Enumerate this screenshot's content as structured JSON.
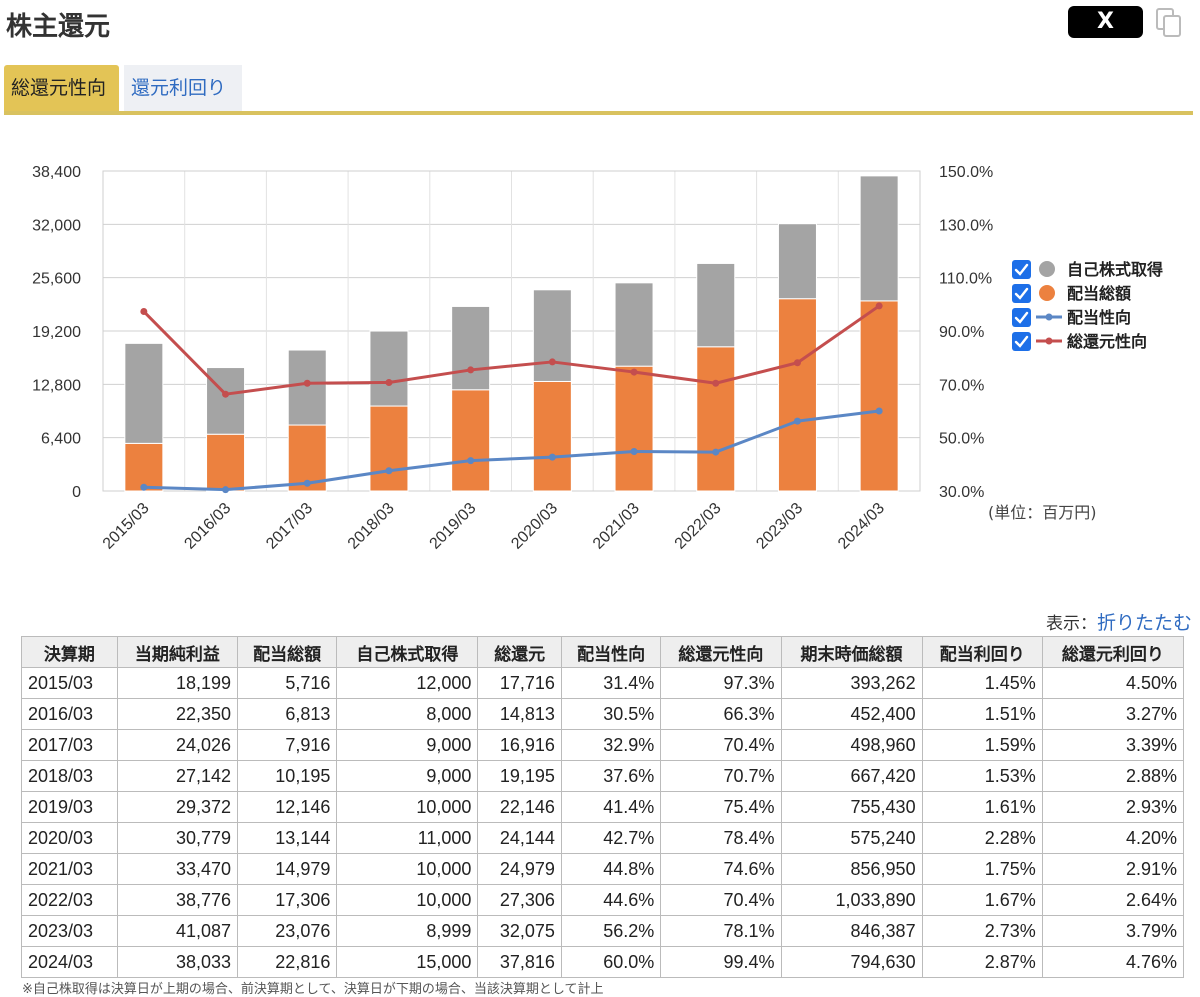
{
  "header": {
    "title": "株主還元",
    "x_label": "X"
  },
  "tabs": [
    {
      "label": "総還元性向"
    },
    {
      "label": "還元利回り"
    }
  ],
  "chart_data": {
    "type": "bar",
    "categories": [
      "2015/03",
      "2016/03",
      "2017/03",
      "2018/03",
      "2019/03",
      "2020/03",
      "2021/03",
      "2022/03",
      "2023/03",
      "2024/03"
    ],
    "series": [
      {
        "name": "自己株式取得",
        "kind": "bar-stack",
        "axis": "left",
        "color": "#a4a4a4",
        "values": [
          12000,
          8000,
          9000,
          9000,
          10000,
          11000,
          10000,
          10000,
          8999,
          15000
        ]
      },
      {
        "name": "配当総額",
        "kind": "bar-stack",
        "axis": "left",
        "color": "#ec813f",
        "values": [
          5716,
          6813,
          7916,
          10195,
          12146,
          13144,
          14979,
          17306,
          23076,
          22816
        ]
      },
      {
        "name": "配当性向",
        "kind": "line",
        "axis": "right",
        "color": "#5b87c5",
        "values": [
          31.4,
          30.5,
          32.9,
          37.6,
          41.4,
          42.7,
          44.8,
          44.6,
          56.2,
          60.0
        ]
      },
      {
        "name": "総還元性向",
        "kind": "line",
        "axis": "right",
        "color": "#c44e4e",
        "values": [
          97.3,
          66.3,
          70.4,
          70.7,
          75.4,
          78.4,
          74.6,
          70.4,
          78.1,
          99.4
        ]
      }
    ],
    "left_ticks": [
      "0",
      "6,400",
      "12,800",
      "19,200",
      "25,600",
      "32,000",
      "38,400"
    ],
    "right_ticks": [
      "30.0%",
      "50.0%",
      "70.0%",
      "90.0%",
      "110.0%",
      "130.0%",
      "150.0%"
    ],
    "ylim_left": [
      0,
      38400
    ],
    "ylim_right": [
      30,
      150
    ],
    "unit_label": "(単位：百万円)",
    "legend_position": "right",
    "grid": true
  },
  "table_controls": {
    "display_label": "表示：",
    "collapse_label": "折りたたむ"
  },
  "table": {
    "headers": [
      "決算期",
      "当期純利益",
      "配当総額",
      "自己株式取得",
      "総還元",
      "配当性向",
      "総還元性向",
      "期末時価総額",
      "配当利回り",
      "総還元利回り"
    ],
    "rows": [
      [
        "2015/03",
        "18,199",
        "5,716",
        "12,000",
        "17,716",
        "31.4%",
        "97.3%",
        "393,262",
        "1.45%",
        "4.50%"
      ],
      [
        "2016/03",
        "22,350",
        "6,813",
        "8,000",
        "14,813",
        "30.5%",
        "66.3%",
        "452,400",
        "1.51%",
        "3.27%"
      ],
      [
        "2017/03",
        "24,026",
        "7,916",
        "9,000",
        "16,916",
        "32.9%",
        "70.4%",
        "498,960",
        "1.59%",
        "3.39%"
      ],
      [
        "2018/03",
        "27,142",
        "10,195",
        "9,000",
        "19,195",
        "37.6%",
        "70.7%",
        "667,420",
        "1.53%",
        "2.88%"
      ],
      [
        "2019/03",
        "29,372",
        "12,146",
        "10,000",
        "22,146",
        "41.4%",
        "75.4%",
        "755,430",
        "1.61%",
        "2.93%"
      ],
      [
        "2020/03",
        "30,779",
        "13,144",
        "11,000",
        "24,144",
        "42.7%",
        "78.4%",
        "575,240",
        "2.28%",
        "4.20%"
      ],
      [
        "2021/03",
        "33,470",
        "14,979",
        "10,000",
        "24,979",
        "44.8%",
        "74.6%",
        "856,950",
        "1.75%",
        "2.91%"
      ],
      [
        "2022/03",
        "38,776",
        "17,306",
        "10,000",
        "27,306",
        "44.6%",
        "70.4%",
        "1,033,890",
        "1.67%",
        "2.64%"
      ],
      [
        "2023/03",
        "41,087",
        "23,076",
        "8,999",
        "32,075",
        "56.2%",
        "78.1%",
        "846,387",
        "2.73%",
        "3.79%"
      ],
      [
        "2024/03",
        "38,033",
        "22,816",
        "15,000",
        "37,816",
        "60.0%",
        "99.4%",
        "794,630",
        "2.87%",
        "4.76%"
      ]
    ]
  },
  "footnote": "※自己株取得は決算日が上期の場合、前決算期として、決算日が下期の場合、当該決算期として計上"
}
